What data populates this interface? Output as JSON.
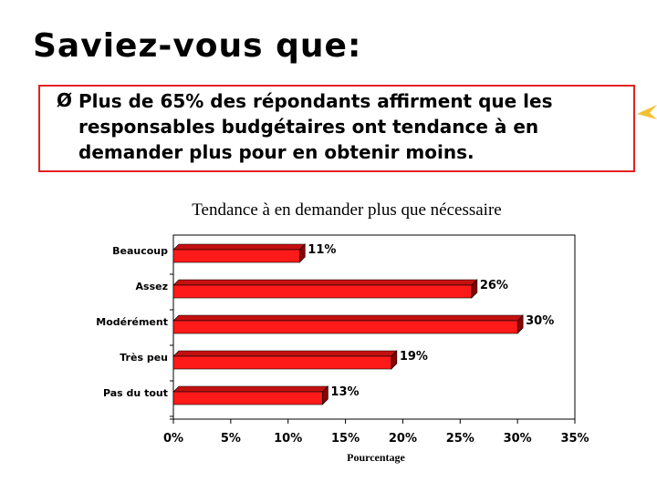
{
  "slide": {
    "title": "Saviez-vous que:",
    "bullet_marker": "Ø",
    "bullet_text": "Plus de 65% des répondants affirment que les responsables budgétaires ont tendance à en demander plus pour en obtenir moins."
  },
  "colors": {
    "accent": "#e32222",
    "bar_fill": "#ff1a1a",
    "bar_side": "#8b0000",
    "bar_top": "#c41010",
    "pointer": "#f2c233"
  },
  "chart_data": {
    "type": "bar",
    "orientation": "horizontal",
    "title": "Tendance à en demander plus que nécessaire",
    "categories": [
      "Beaucoup",
      "Assez",
      "Modérément",
      "Très peu",
      "Pas du tout"
    ],
    "values": [
      11,
      26,
      30,
      19,
      13
    ],
    "value_labels": [
      "11%",
      "26%",
      "30%",
      "19%",
      "13%"
    ],
    "xlabel": "Pourcentage",
    "ylabel": "",
    "xlim": [
      0,
      35
    ],
    "x_ticks": [
      0,
      5,
      10,
      15,
      20,
      25,
      30,
      35
    ],
    "x_tick_labels": [
      "0%",
      "5%",
      "10%",
      "15%",
      "20%",
      "25%",
      "30%",
      "35%"
    ],
    "grid": false,
    "style": "3d"
  }
}
